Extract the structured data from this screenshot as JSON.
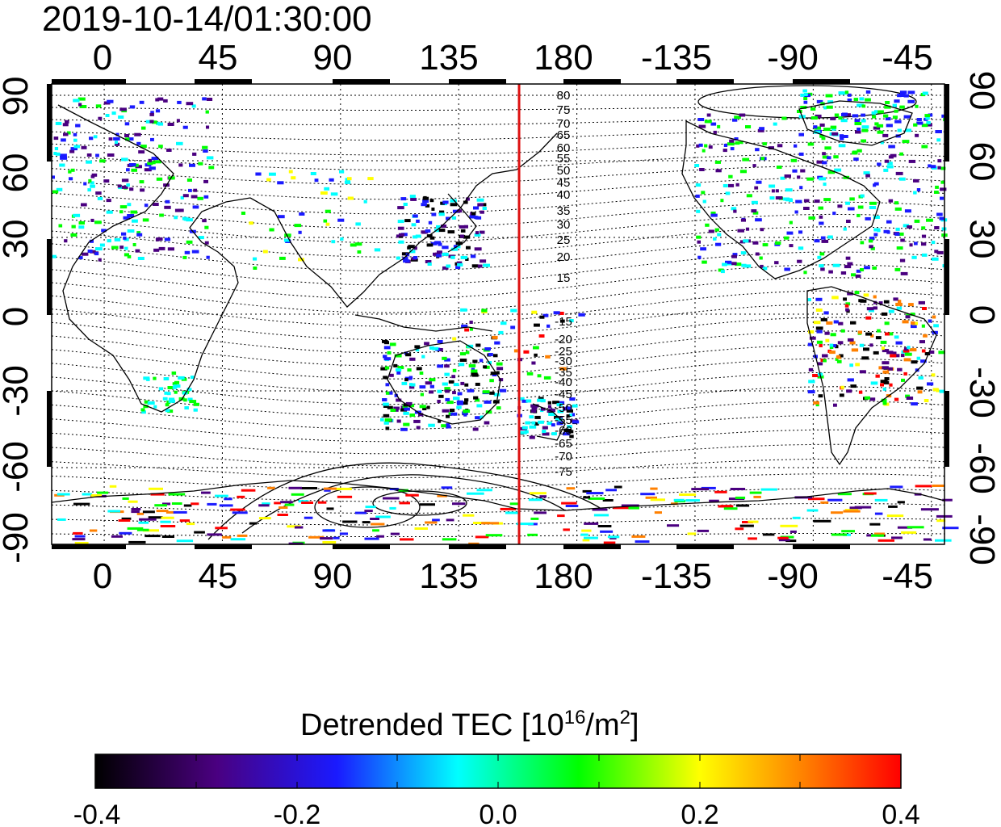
{
  "title": "2019-10-14/01:30:00",
  "axes": {
    "lon_ticks_top": [
      "0",
      "45",
      "90",
      "135",
      "180",
      "-135",
      "-90",
      "-45"
    ],
    "lon_ticks_bottom": [
      "0",
      "45",
      "90",
      "135",
      "180",
      "-135",
      "-90",
      "-45"
    ],
    "lat_ticks_left": [
      "90",
      "60",
      "30",
      "0",
      "-30",
      "-60",
      "-90"
    ],
    "lat_ticks_right": [
      "90",
      "60",
      "30",
      "0",
      "-30",
      "-60",
      "-90"
    ],
    "lon_range": [
      -20,
      320
    ],
    "lat_range": [
      -90,
      90
    ]
  },
  "contour_labels": [
    "80",
    "75",
    "70",
    "65",
    "60",
    "55",
    "50",
    "45",
    "40",
    "35",
    "30",
    "25",
    "20",
    "15",
    "-15",
    "-20",
    "-25",
    "-30",
    "-35",
    "-40",
    "-45",
    "-50",
    "-55",
    "-60",
    "-65",
    "-70",
    "-75"
  ],
  "marker_line": {
    "longitude": 158,
    "color": "#dd1111"
  },
  "colorbar": {
    "label_main": "Detrended TEC  [10",
    "label_sup1": "16",
    "label_mid": "/m",
    "label_sup2": "2",
    "label_end": "]",
    "ticks": [
      "-0.4",
      "-0.2",
      "0.0",
      "0.2",
      "0.4"
    ],
    "range": [
      -0.4,
      0.4
    ]
  },
  "colors": {
    "coast": "#000000",
    "grid": "#000000",
    "colormap": [
      "#000000",
      "#4a0080",
      "#1a1aff",
      "#00ffff",
      "#00ff00",
      "#ffff00",
      "#ff8000",
      "#ff0000"
    ]
  }
}
